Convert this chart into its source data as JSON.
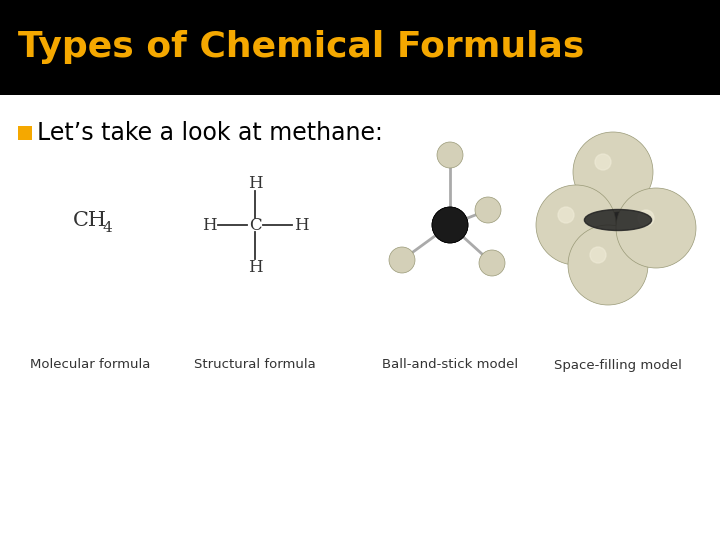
{
  "title": "Types of Chemical Formulas",
  "title_color": "#F5A800",
  "title_bg": "#000000",
  "body_bg": "#FFFFFF",
  "subtitle_color": "#000000",
  "subtitle_box_color": "#F5A800",
  "subtitle_text": "Let’s take a look at methane:",
  "labels": [
    "Molecular formula",
    "Structural formula",
    "Ball-and-stick model",
    "Space-filling model"
  ],
  "title_bar_height": 0.175,
  "title_fontsize": 26,
  "subtitle_fontsize": 17,
  "label_fontsize": 9.5,
  "formula_fontsize": 15,
  "structural_fontsize": 12
}
